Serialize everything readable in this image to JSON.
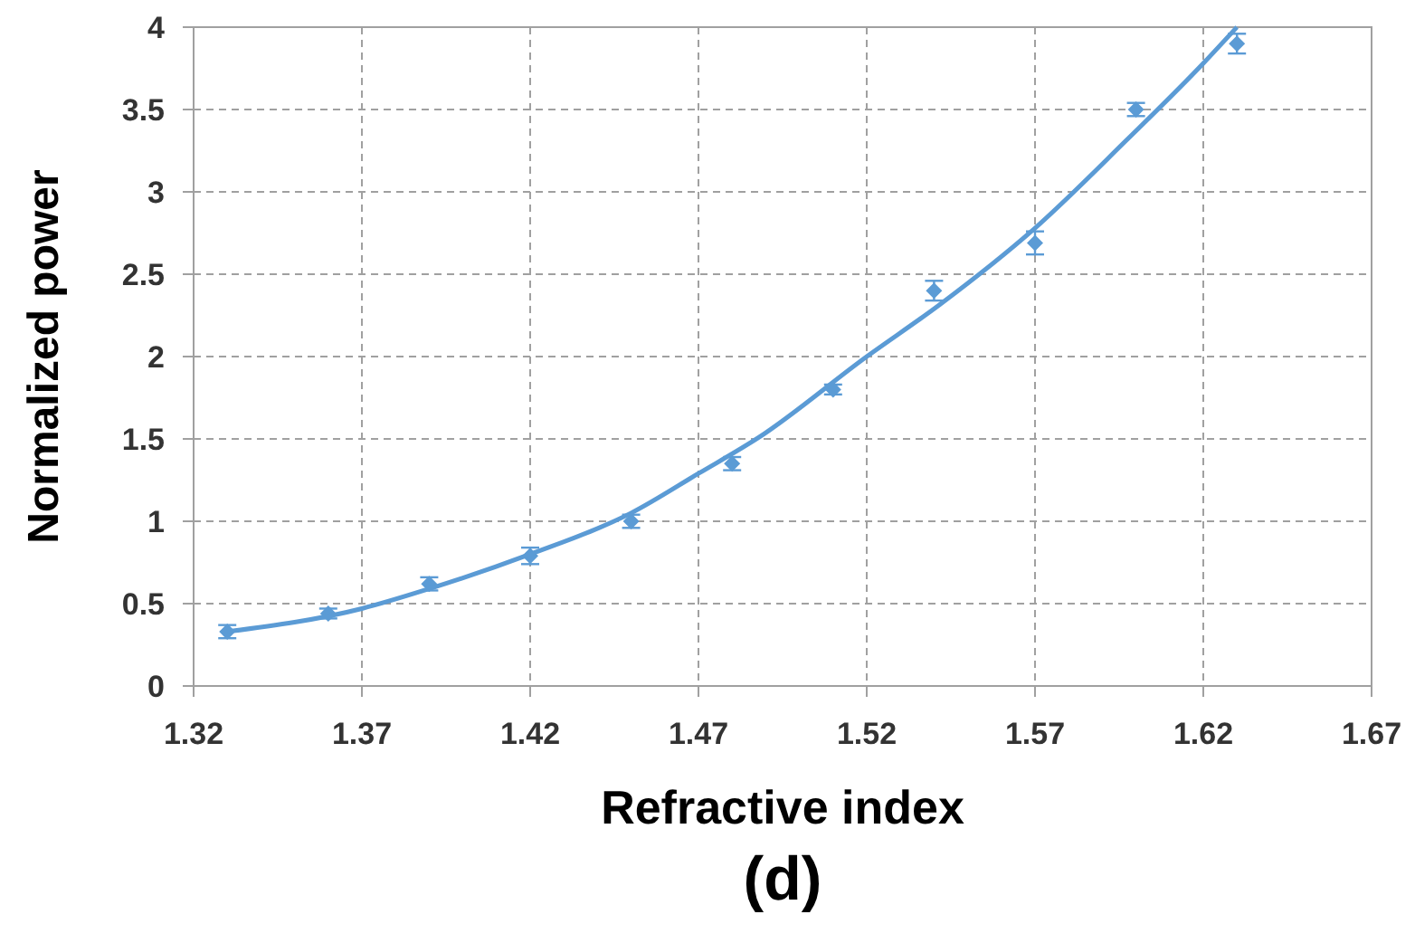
{
  "chart_data": {
    "type": "scatter",
    "xlabel": "Refractive index",
    "ylabel": "Normalized power",
    "annotations": [
      "(d)"
    ],
    "xlim": [
      1.32,
      1.67
    ],
    "xticks": [
      1.32,
      1.37,
      1.42,
      1.47,
      1.52,
      1.57,
      1.62,
      1.67
    ],
    "ylim": [
      0,
      4
    ],
    "yticks": [
      0,
      0.5,
      1,
      1.5,
      2,
      2.5,
      3,
      3.5,
      4
    ],
    "grid": true,
    "series": [
      {
        "color": "#5b9bd5",
        "marker": "diamond",
        "x": [
          1.33,
          1.36,
          1.39,
          1.42,
          1.45,
          1.48,
          1.51,
          1.54,
          1.57,
          1.6,
          1.63
        ],
        "values": [
          0.33,
          0.44,
          0.62,
          0.79,
          1.0,
          1.35,
          1.8,
          2.4,
          2.69,
          3.5,
          3.9
        ],
        "errors": [
          0.04,
          0.03,
          0.04,
          0.05,
          0.04,
          0.04,
          0.03,
          0.06,
          0.07,
          0.04,
          0.06
        ]
      },
      {
        "type": "line",
        "color": "#5b9bd5",
        "marker": "none",
        "line_style": "solid",
        "x": [
          1.33,
          1.37,
          1.39,
          1.42,
          1.45,
          1.47,
          1.488,
          1.52,
          1.542,
          1.57,
          1.597,
          1.62,
          1.63
        ],
        "values": [
          0.33,
          0.47,
          0.59,
          0.8,
          1.05,
          1.29,
          1.51,
          2.0,
          2.32,
          2.78,
          3.31,
          3.78,
          4.0
        ]
      }
    ]
  }
}
